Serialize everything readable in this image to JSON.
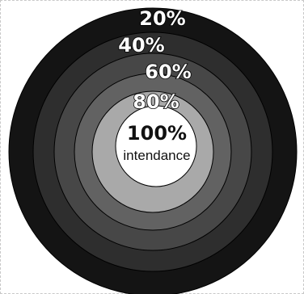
{
  "rings": [
    {
      "label": "20%",
      "color": "#141414"
    },
    {
      "label": "40%",
      "color": "#2e2e2e"
    },
    {
      "label": "60%",
      "color": "#474747"
    },
    {
      "label": "80%",
      "color": "#626262"
    }
  ],
  "center": {
    "label": "100%",
    "caption": "intendance",
    "inner_ring_color": "#a9a9a9",
    "core_color": "#ffffff"
  }
}
